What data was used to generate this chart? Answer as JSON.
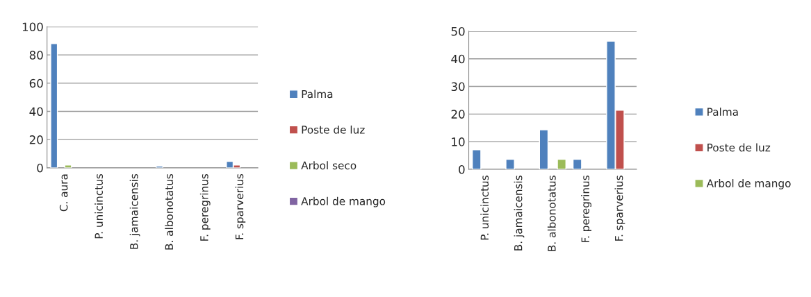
{
  "chart_data": [
    {
      "type": "bar",
      "categories": [
        "C. aura",
        "P. unicinctus",
        "B. jamaicensis",
        "B. albonotatus",
        "F. peregrinus",
        "F. sparverius"
      ],
      "ylim": [
        0,
        100
      ],
      "yticks": [
        0,
        20,
        40,
        60,
        80,
        100
      ],
      "grid": "y",
      "legend": "right",
      "series": [
        {
          "name": "Palma",
          "color": "#4f81bd",
          "values": [
            88,
            null,
            null,
            1.2,
            null,
            4.5
          ]
        },
        {
          "name": "Poste de luz",
          "color": "#c0504d",
          "values": [
            null,
            null,
            null,
            null,
            null,
            2
          ]
        },
        {
          "name": "Arbol seco",
          "color": "#9bbb59",
          "values": [
            2,
            null,
            null,
            null,
            null,
            null
          ]
        },
        {
          "name": "Arbol de mango",
          "color": "#8064a2",
          "values": [
            null,
            null,
            null,
            null,
            null,
            null
          ]
        }
      ]
    },
    {
      "type": "bar",
      "categories": [
        "P. unicinctus",
        "B. jamaicensis",
        "B. albonotatus",
        "F. peregrinus",
        "F. sparverius"
      ],
      "ylim": [
        0,
        50
      ],
      "yticks": [
        0,
        10,
        20,
        30,
        40,
        50
      ],
      "grid": "y",
      "legend": "right",
      "series": [
        {
          "name": "Palma",
          "color": "#4f81bd",
          "values": [
            7.1,
            3.6,
            14.3,
            3.6,
            46.4
          ]
        },
        {
          "name": "Poste de luz",
          "color": "#c0504d",
          "values": [
            null,
            null,
            null,
            null,
            21.4
          ]
        },
        {
          "name": "Arbol de mango",
          "color": "#9bbb59",
          "values": [
            null,
            null,
            3.6,
            null,
            null
          ]
        }
      ]
    }
  ]
}
